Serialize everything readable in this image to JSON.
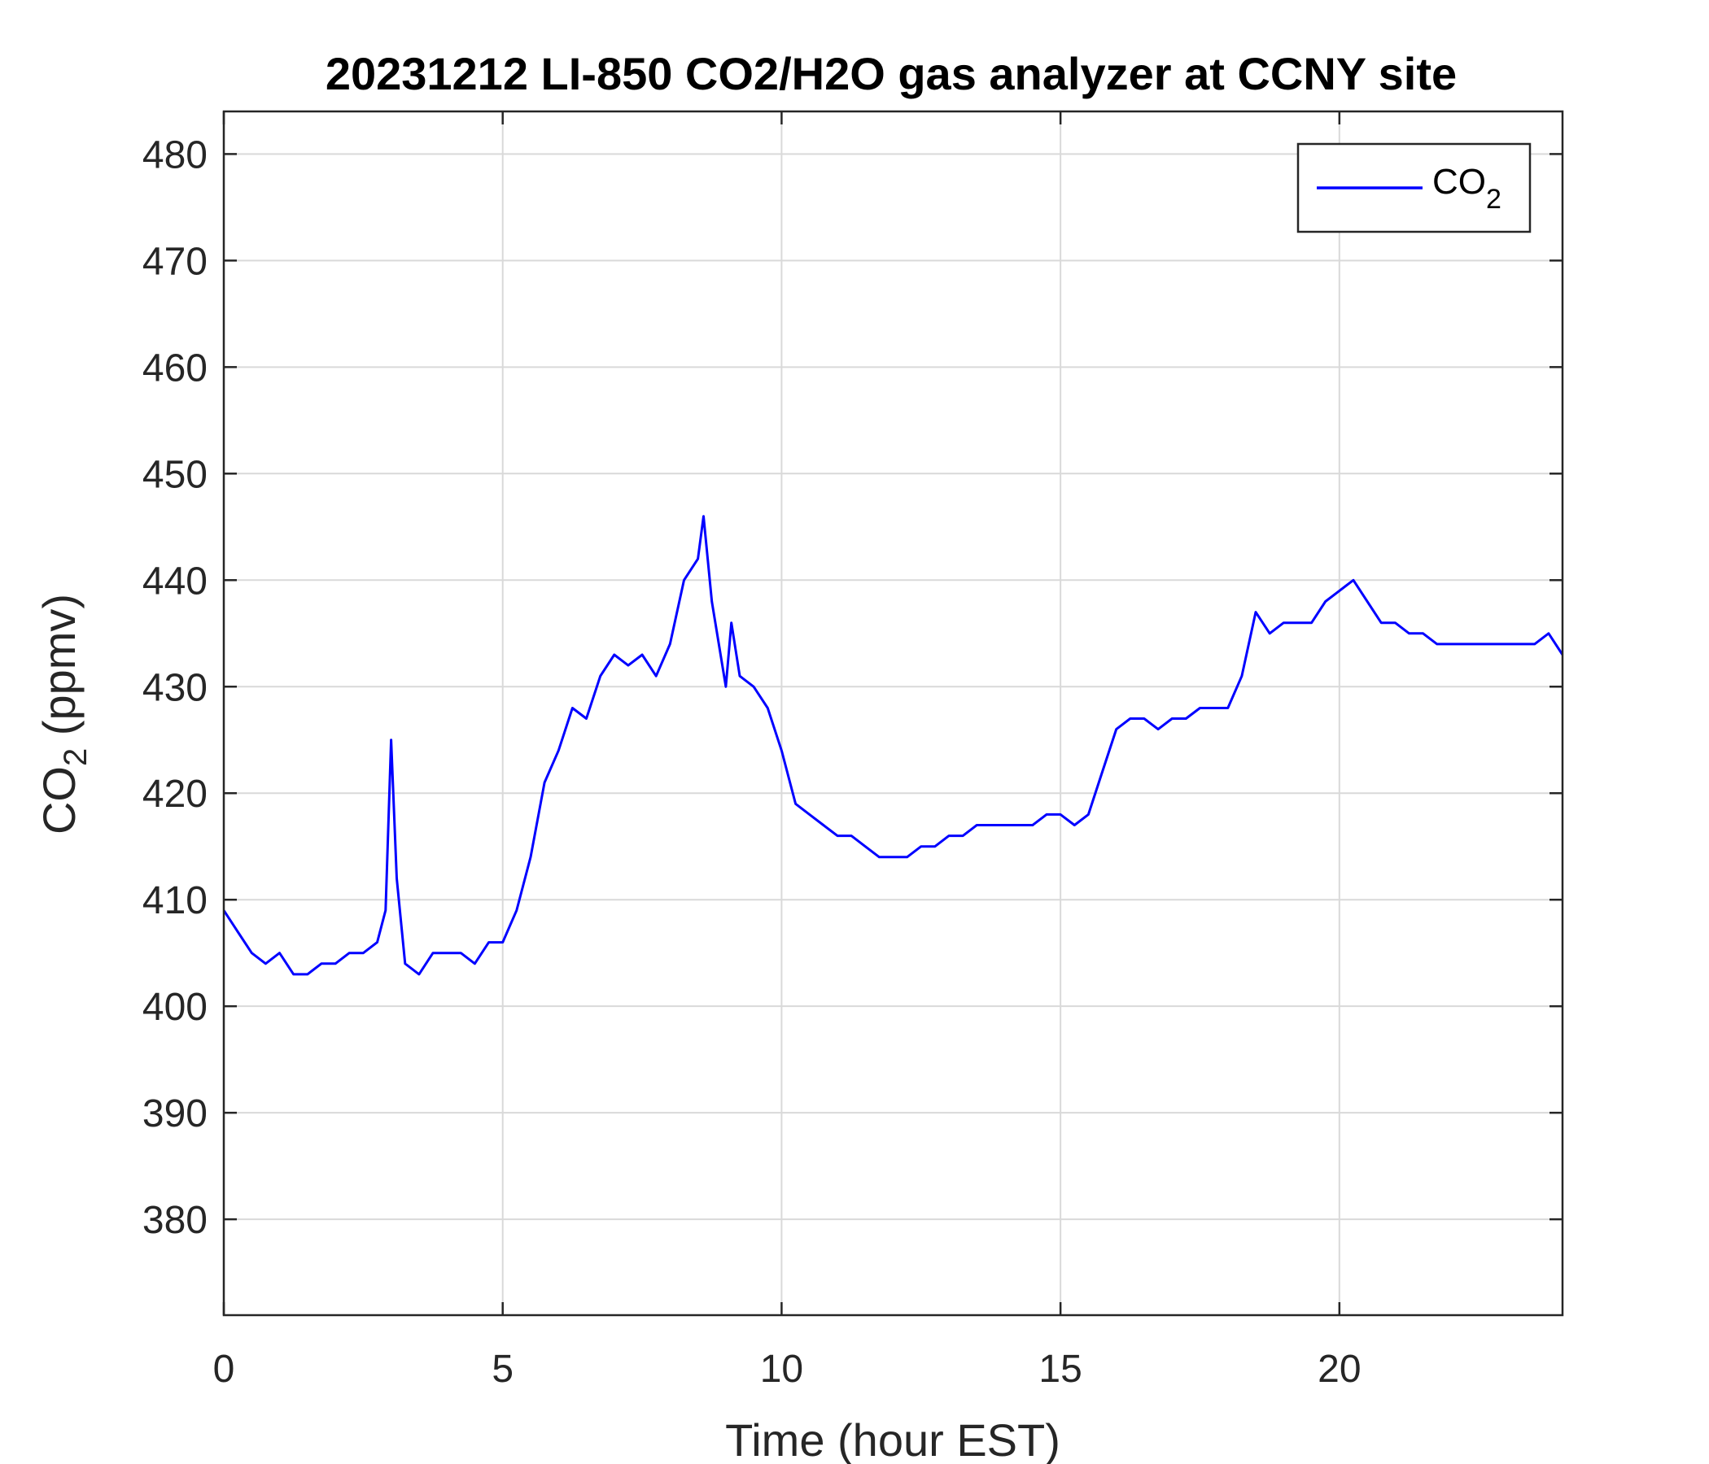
{
  "chart_data": {
    "type": "line",
    "title": "20231212 LI-850 CO2/H2O gas analyzer at CCNY site",
    "xlabel": "Time (hour EST)",
    "ylabel": {
      "main": "CO",
      "sub": "2",
      "unit": " (ppmv)"
    },
    "xlim": [
      0,
      24
    ],
    "ylim": [
      371,
      484
    ],
    "xticks": [
      0,
      5,
      10,
      15,
      20
    ],
    "yticks": [
      380,
      390,
      400,
      410,
      420,
      430,
      440,
      450,
      460,
      470,
      480
    ],
    "grid": true,
    "legend": {
      "position": "top-right",
      "entries": [
        {
          "main": "CO",
          "sub": "2"
        }
      ]
    },
    "series": [
      {
        "color": "#0000ff",
        "x": [
          0,
          0.25,
          0.5,
          0.75,
          1.0,
          1.25,
          1.5,
          1.75,
          2.0,
          2.25,
          2.5,
          2.75,
          2.9,
          3.0,
          3.1,
          3.25,
          3.5,
          3.75,
          4.0,
          4.25,
          4.5,
          4.75,
          5.0,
          5.25,
          5.5,
          5.75,
          6.0,
          6.25,
          6.5,
          6.75,
          7.0,
          7.25,
          7.5,
          7.75,
          8.0,
          8.25,
          8.5,
          8.6,
          8.75,
          9.0,
          9.1,
          9.25,
          9.5,
          9.75,
          10.0,
          10.25,
          10.5,
          10.75,
          11.0,
          11.25,
          11.5,
          11.75,
          12.0,
          12.25,
          12.5,
          12.75,
          13.0,
          13.25,
          13.5,
          13.75,
          14.0,
          14.25,
          14.5,
          14.75,
          15.0,
          15.25,
          15.5,
          15.75,
          16.0,
          16.25,
          16.5,
          16.75,
          17.0,
          17.25,
          17.5,
          17.75,
          18.0,
          18.25,
          18.5,
          18.75,
          19.0,
          19.25,
          19.5,
          19.75,
          20.0,
          20.25,
          20.5,
          20.75,
          21.0,
          21.25,
          21.5,
          21.75,
          22.0,
          22.25,
          22.5,
          22.75,
          23.0,
          23.25,
          23.5,
          23.75,
          24.0
        ],
        "y": [
          409,
          407,
          405,
          404,
          405,
          403,
          403,
          404,
          404,
          405,
          405,
          406,
          409,
          425,
          412,
          404,
          403,
          405,
          405,
          405,
          404,
          406,
          406,
          409,
          414,
          421,
          424,
          428,
          427,
          431,
          433,
          432,
          433,
          431,
          434,
          440,
          442,
          446,
          438,
          430,
          436,
          431,
          430,
          428,
          424,
          419,
          418,
          417,
          416,
          416,
          415,
          414,
          414,
          414,
          415,
          415,
          416,
          416,
          417,
          417,
          417,
          417,
          417,
          418,
          418,
          417,
          418,
          422,
          426,
          427,
          427,
          426,
          427,
          427,
          428,
          428,
          428,
          431,
          437,
          435,
          436,
          436,
          436,
          438,
          439,
          440,
          438,
          436,
          436,
          435,
          435,
          434,
          434,
          434,
          434,
          434,
          434,
          434,
          434,
          435,
          433
        ]
      }
    ]
  }
}
